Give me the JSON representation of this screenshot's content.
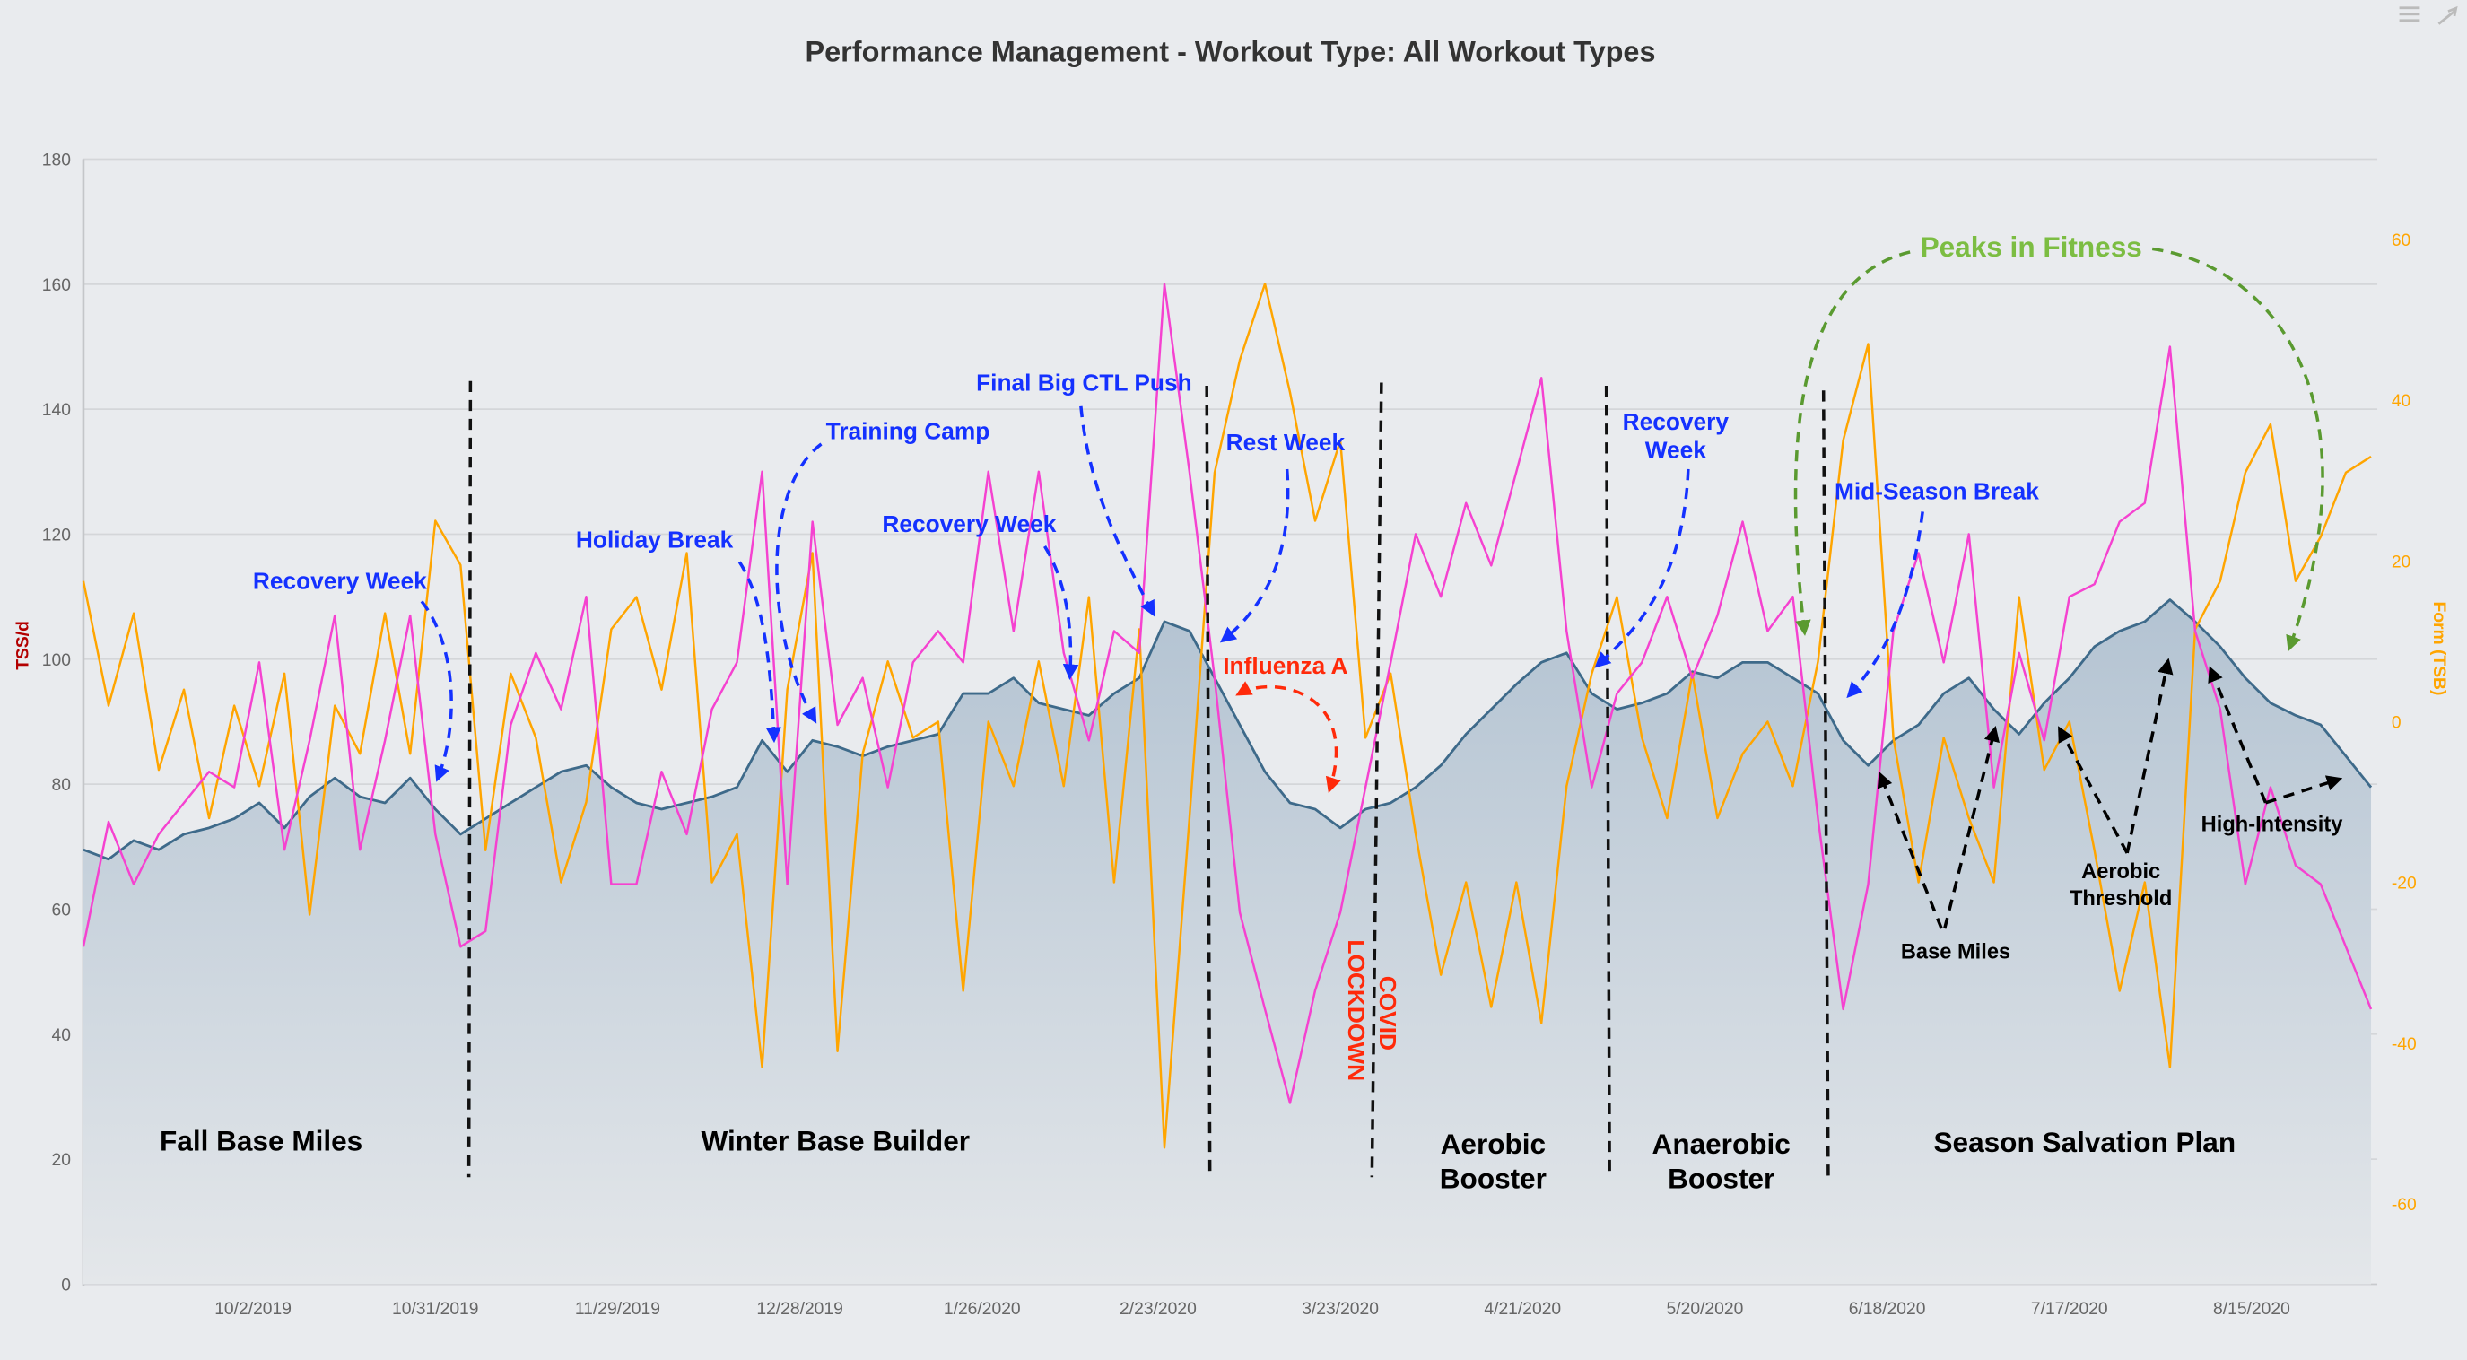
{
  "toolbar": {
    "menu_icon": "hamburger-menu-icon",
    "collapse_icon": "collapse-arrows-icon"
  },
  "colors": {
    "fitness_line": "#3e6a8a",
    "fitness_fill": "#b9c7d4",
    "fatigue": "#f542d0",
    "form": "#ffa500",
    "left_axis_label": "#b30000",
    "annotation_blue": "#1431ff",
    "annotation_red": "#ff2a0a",
    "annotation_green": "#7cbd42"
  },
  "chart_data": {
    "type": "line",
    "title": "Performance Management - Workout Type: All Workout Types",
    "ylabel": "TSS/d",
    "y2label": "Form (TSB)",
    "ylim": [
      0,
      180
    ],
    "y2lim": [
      -70,
      70
    ],
    "xlim": [
      "2019-09-05",
      "2020-09-04"
    ],
    "grid": true,
    "yticks": [
      "0",
      "20",
      "40",
      "60",
      "80",
      "100",
      "120",
      "140",
      "160",
      "180"
    ],
    "y2ticks": [
      "-60",
      "-40",
      "-20",
      "0",
      "20",
      "40",
      "60"
    ],
    "xticks": [
      "10/2/2019",
      "10/31/2019",
      "11/29/2019",
      "12/28/2019",
      "1/26/2020",
      "2/23/2020",
      "3/23/2020",
      "4/21/2020",
      "5/20/2020",
      "6/18/2020",
      "7/17/2020",
      "8/15/2020"
    ],
    "x": [
      "2019-09-05",
      "2019-09-09",
      "2019-09-13",
      "2019-09-17",
      "2019-09-21",
      "2019-09-25",
      "2019-09-29",
      "2019-10-03",
      "2019-10-07",
      "2019-10-11",
      "2019-10-15",
      "2019-10-19",
      "2019-10-23",
      "2019-10-27",
      "2019-10-31",
      "2019-11-04",
      "2019-11-08",
      "2019-11-12",
      "2019-11-16",
      "2019-11-20",
      "2019-11-24",
      "2019-11-28",
      "2019-12-02",
      "2019-12-06",
      "2019-12-10",
      "2019-12-14",
      "2019-12-18",
      "2019-12-22",
      "2019-12-26",
      "2019-12-30",
      "2020-01-03",
      "2020-01-07",
      "2020-01-11",
      "2020-01-15",
      "2020-01-19",
      "2020-01-23",
      "2020-01-27",
      "2020-01-31",
      "2020-02-04",
      "2020-02-08",
      "2020-02-12",
      "2020-02-16",
      "2020-02-20",
      "2020-02-24",
      "2020-02-28",
      "2020-03-03",
      "2020-03-07",
      "2020-03-11",
      "2020-03-15",
      "2020-03-19",
      "2020-03-23",
      "2020-03-27",
      "2020-03-31",
      "2020-04-04",
      "2020-04-08",
      "2020-04-12",
      "2020-04-16",
      "2020-04-20",
      "2020-04-24",
      "2020-04-28",
      "2020-05-02",
      "2020-05-06",
      "2020-05-10",
      "2020-05-14",
      "2020-05-18",
      "2020-05-22",
      "2020-05-26",
      "2020-05-30",
      "2020-06-03",
      "2020-06-07",
      "2020-06-11",
      "2020-06-15",
      "2020-06-19",
      "2020-06-23",
      "2020-06-27",
      "2020-07-01",
      "2020-07-05",
      "2020-07-09",
      "2020-07-13",
      "2020-07-17",
      "2020-07-21",
      "2020-07-25",
      "2020-07-29",
      "2020-08-02",
      "2020-08-06",
      "2020-08-10",
      "2020-08-14",
      "2020-08-18",
      "2020-08-22",
      "2020-08-26",
      "2020-08-30",
      "2020-09-03"
    ],
    "series": [
      {
        "key": "fitness",
        "axis": "left",
        "style": "area",
        "values": [
          69.5,
          68,
          71,
          69.5,
          72,
          73,
          74.5,
          77,
          73,
          78,
          81,
          78,
          77,
          81,
          76,
          72,
          74.5,
          77,
          79.5,
          82,
          83,
          79.5,
          77,
          76,
          77,
          78,
          79.5,
          87,
          82,
          87,
          86,
          84.5,
          86,
          87,
          88,
          94.5,
          94.5,
          97,
          93,
          92,
          91,
          94.5,
          97,
          106,
          104.5,
          97,
          89.5,
          82,
          77,
          76,
          73,
          76,
          77,
          79.5,
          83,
          88,
          92,
          96,
          99.5,
          101,
          94.5,
          92,
          93,
          94.5,
          98,
          97,
          99.5,
          99.5,
          97,
          94.5,
          87,
          83,
          87,
          89.5,
          94.5,
          97,
          92,
          88,
          93,
          97,
          102,
          104.5,
          106,
          109.5,
          106,
          102,
          97,
          93,
          91,
          89.5,
          84.5,
          79.5
        ]
      },
      {
        "key": "fatigue",
        "axis": "left",
        "style": "line",
        "values": [
          54,
          74,
          64,
          72,
          77,
          82,
          79.5,
          99.5,
          69.5,
          87,
          107,
          69.5,
          87,
          107,
          72,
          54,
          56.5,
          89.5,
          101,
          92,
          110,
          64,
          64,
          82,
          72,
          92,
          99.5,
          130,
          64,
          122,
          89.5,
          97,
          79.5,
          99.5,
          104.5,
          99.5,
          130,
          104.5,
          130,
          101,
          87,
          104.5,
          101,
          160,
          130,
          97,
          59.5,
          44,
          29,
          47,
          59.5,
          79.5,
          99.5,
          120,
          110,
          125,
          115,
          130,
          145,
          104.5,
          79.5,
          94.5,
          99.5,
          110,
          97,
          107,
          122,
          104.5,
          110,
          74.5,
          44,
          64,
          104.5,
          117,
          99.5,
          120,
          79.5,
          101,
          87,
          110,
          112,
          122,
          125,
          150,
          104.5,
          92,
          64,
          79.5,
          67,
          64,
          54,
          44
        ]
      },
      {
        "key": "form",
        "axis": "right",
        "style": "line",
        "values": [
          17.5,
          2,
          13.5,
          -6,
          4,
          -12,
          2,
          -8,
          6,
          -24,
          2,
          -4,
          13.5,
          -4,
          25,
          19.5,
          -16,
          6,
          -2,
          -20,
          -10,
          11.5,
          15.5,
          4,
          21,
          -20,
          -14,
          -43,
          4,
          21,
          -41,
          -4,
          7.5,
          -2,
          0,
          -33.5,
          0,
          -8,
          7.5,
          -8,
          15.5,
          -20,
          11.5,
          -53,
          -12,
          31,
          45,
          54.5,
          41,
          25,
          35,
          -2,
          6,
          -14,
          -31.5,
          -20,
          -35.5,
          -20,
          -37.5,
          -8,
          6,
          15.5,
          -2,
          -12,
          6,
          -12,
          -4,
          0,
          -8,
          7.5,
          35,
          47,
          -2,
          -20,
          -2,
          -12,
          -20,
          15.5,
          -6,
          0,
          -16,
          -33.5,
          -20,
          -43,
          11.5,
          17.5,
          31,
          37,
          17.5,
          23,
          31,
          33
        ]
      }
    ]
  },
  "annotations": {
    "recovery_week_1": "Recovery Week",
    "holiday_break": "Holiday Break",
    "training_camp": "Training Camp",
    "recovery_week_2": "Recovery Week",
    "final_ctl_push": "Final Big CTL Push",
    "rest_week": "Rest Week",
    "influenza": "Influenza A",
    "covid_line1": "COVID",
    "covid_line2": "LOCKDOWN",
    "recovery_week_3_line1": "Recovery",
    "recovery_week_3_line2": "Week",
    "mid_season_break": "Mid-Season Break",
    "peaks": "Peaks in Fitness",
    "base_miles": "Base Miles",
    "aerobic_threshold_line1": "Aerobic",
    "aerobic_threshold_line2": "Threshold",
    "high_intensity": "High-Intensity"
  },
  "phases": {
    "fall": "Fall Base Miles",
    "winter": "Winter Base Builder",
    "aerobic_line1": "Aerobic",
    "aerobic_line2": "Booster",
    "anaerobic_line1": "Anaerobic",
    "anaerobic_line2": "Booster",
    "season": "Season Salvation Plan"
  }
}
